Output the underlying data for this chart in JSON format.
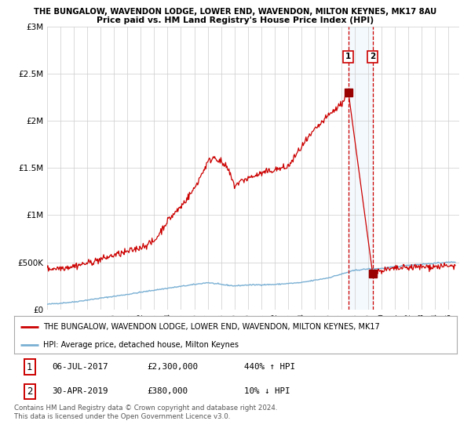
{
  "title_line1": "THE BUNGALOW, WAVENDON LODGE, LOWER END, WAVENDON, MILTON KEYNES, MK17 8AU",
  "title_line2": "Price paid vs. HM Land Registry's House Price Index (HPI)",
  "xlim_start": 1995.0,
  "xlim_end": 2025.8,
  "ylim_min": 0,
  "ylim_max": 3000000,
  "yticks": [
    0,
    500000,
    1000000,
    1500000,
    2000000,
    2500000,
    3000000
  ],
  "ytick_labels": [
    "£0",
    "£500K",
    "£1M",
    "£1.5M",
    "£2M",
    "£2.5M",
    "£3M"
  ],
  "red_line_color": "#cc0000",
  "blue_line_color": "#7ab0d4",
  "transaction1_x": 2017.51,
  "transaction1_y": 2300000,
  "transaction2_x": 2019.33,
  "transaction2_y": 380000,
  "transaction1_label": "06-JUL-2017",
  "transaction1_price": "£2,300,000",
  "transaction1_hpi": "440% ↑ HPI",
  "transaction2_label": "30-APR-2019",
  "transaction2_price": "£380,000",
  "transaction2_hpi": "10% ↓ HPI",
  "legend_line1": "THE BUNGALOW, WAVENDON LODGE, LOWER END, WAVENDON, MILTON KEYNES, MK17",
  "legend_line2": "HPI: Average price, detached house, Milton Keynes",
  "footnote": "Contains HM Land Registry data © Crown copyright and database right 2024.\nThis data is licensed under the Open Government Licence v3.0.",
  "background_color": "#ffffff",
  "grid_color": "#cccccc"
}
